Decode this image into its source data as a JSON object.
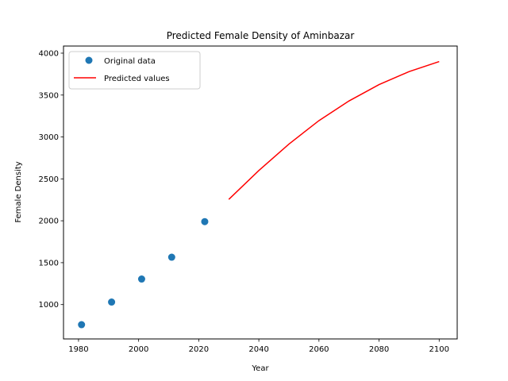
{
  "chart_data": {
    "type": "scatter+line",
    "title": "Predicted Female Density of Aminbazar",
    "xlabel": "Year",
    "ylabel": "Female Density",
    "xlim": [
      1975,
      2106
    ],
    "ylim": [
      590,
      4085
    ],
    "xticks": [
      1980,
      2000,
      2020,
      2040,
      2060,
      2080,
      2100
    ],
    "yticks": [
      1000,
      1500,
      2000,
      2500,
      3000,
      3500,
      4000
    ],
    "grid": false,
    "legend_position": "upper-left",
    "series": [
      {
        "name": "Original data",
        "kind": "scatter",
        "color": "#1f77b4",
        "x": [
          1981,
          1991,
          2001,
          2011,
          2022
        ],
        "y": [
          760,
          1030,
          1305,
          1565,
          1990
        ]
      },
      {
        "name": "Predicted values",
        "kind": "line",
        "color": "#ff0000",
        "x": [
          2030,
          2040,
          2050,
          2060,
          2070,
          2080,
          2090,
          2100
        ],
        "y": [
          2255,
          2600,
          2915,
          3195,
          3430,
          3625,
          3780,
          3900
        ]
      }
    ]
  }
}
